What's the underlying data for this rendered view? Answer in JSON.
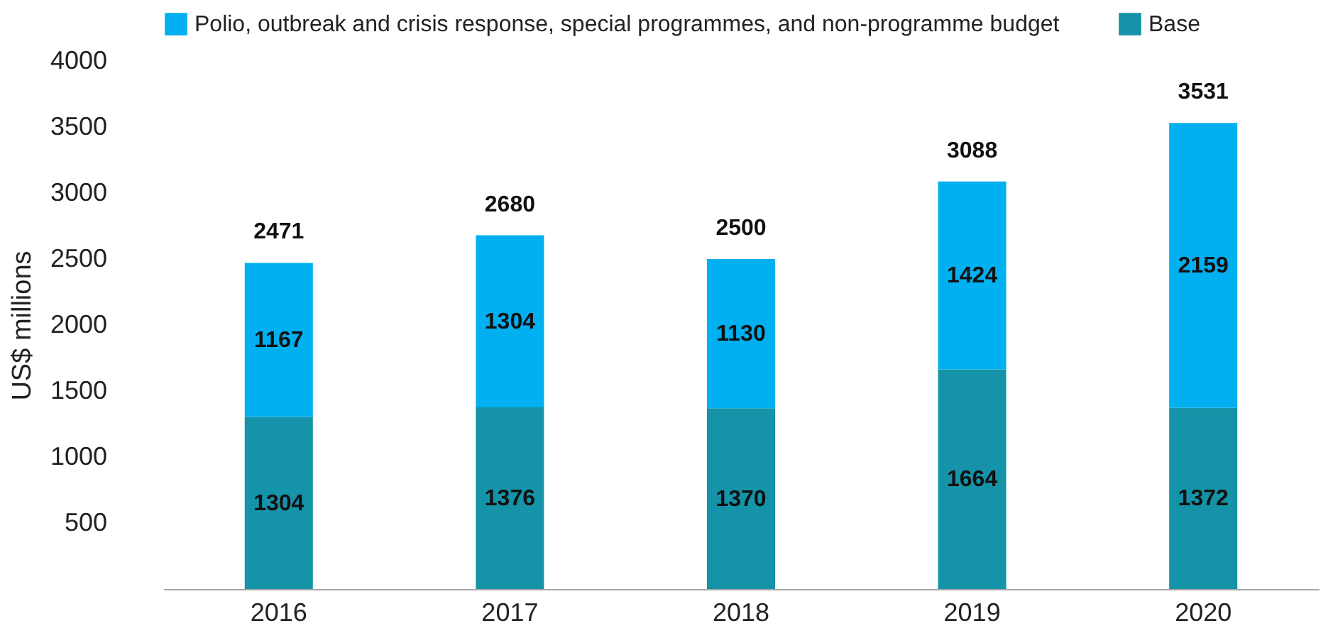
{
  "chart_data": {
    "type": "bar",
    "stacked": true,
    "ylabel": "US$ millions",
    "categories": [
      "2016",
      "2017",
      "2018",
      "2019",
      "2020"
    ],
    "series": [
      {
        "name": "Base",
        "color": "#1593a8",
        "values": [
          1304,
          1376,
          1370,
          1664,
          1372
        ]
      },
      {
        "name": "Polio, outbreak and crisis response, special programmes, and non-programme budget",
        "color": "#00b0f0",
        "values": [
          1167,
          1304,
          1130,
          1424,
          2159
        ]
      }
    ],
    "totals": [
      "2471",
      "2680",
      "2500",
      "3088",
      "3531"
    ],
    "data_labels": true,
    "ylim": [
      0,
      4000
    ],
    "yticks": [
      500,
      1000,
      1500,
      2000,
      2500,
      3000,
      3500,
      4000
    ],
    "grid": false,
    "legend": "top"
  }
}
